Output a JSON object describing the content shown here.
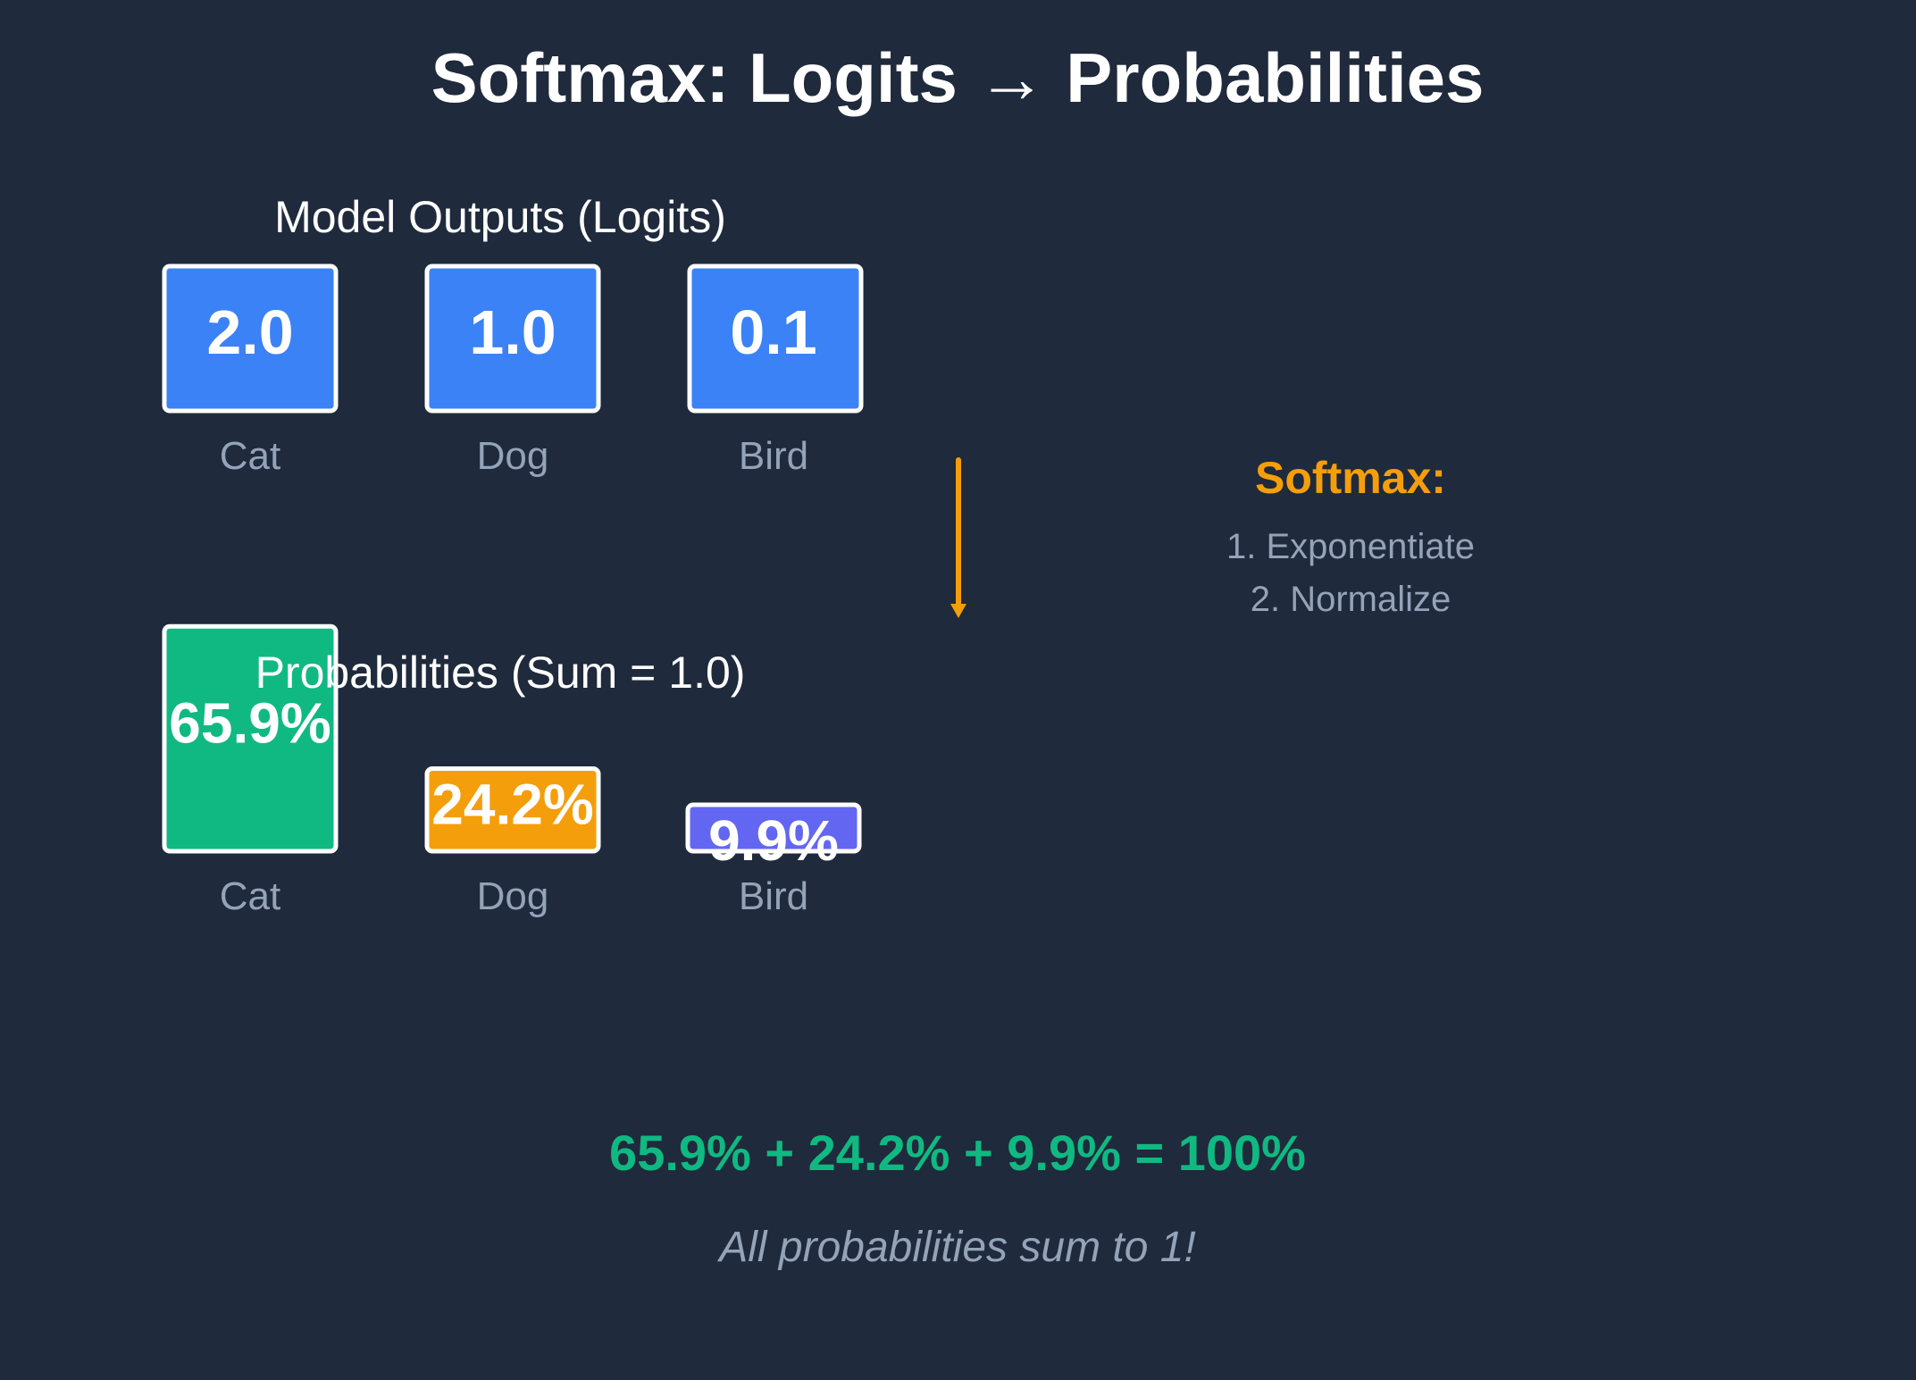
{
  "title": "Softmax: Logits → Probabilities",
  "colors": {
    "background": "#1f2a3c",
    "logit_box": "#3b82f6",
    "cat": "#10b981",
    "dog": "#f59e0b",
    "bird": "#6366f1",
    "arrow": "#f59e0b",
    "muted_text": "#94a3b8",
    "sum_text": "#10b981"
  },
  "logits_section": {
    "heading": "Model Outputs (Logits)",
    "items": [
      {
        "label": "Cat",
        "value": "2.0"
      },
      {
        "label": "Dog",
        "value": "1.0"
      },
      {
        "label": "Bird",
        "value": "0.1"
      }
    ]
  },
  "softmax_box": {
    "title": "Softmax:",
    "steps": [
      "1. Exponentiate",
      "2. Normalize"
    ]
  },
  "probabilities_section": {
    "heading": "Probabilities (Sum = 1.0)",
    "items": [
      {
        "label": "Cat",
        "text": "65.9%",
        "value": 0.659
      },
      {
        "label": "Dog",
        "text": "24.2%",
        "value": 0.242
      },
      {
        "label": "Bird",
        "text": "9.9%",
        "value": 0.099
      }
    ]
  },
  "sum_equation": "65.9% + 24.2% + 9.9% = 100%",
  "footnote": "All probabilities sum to 1!"
}
